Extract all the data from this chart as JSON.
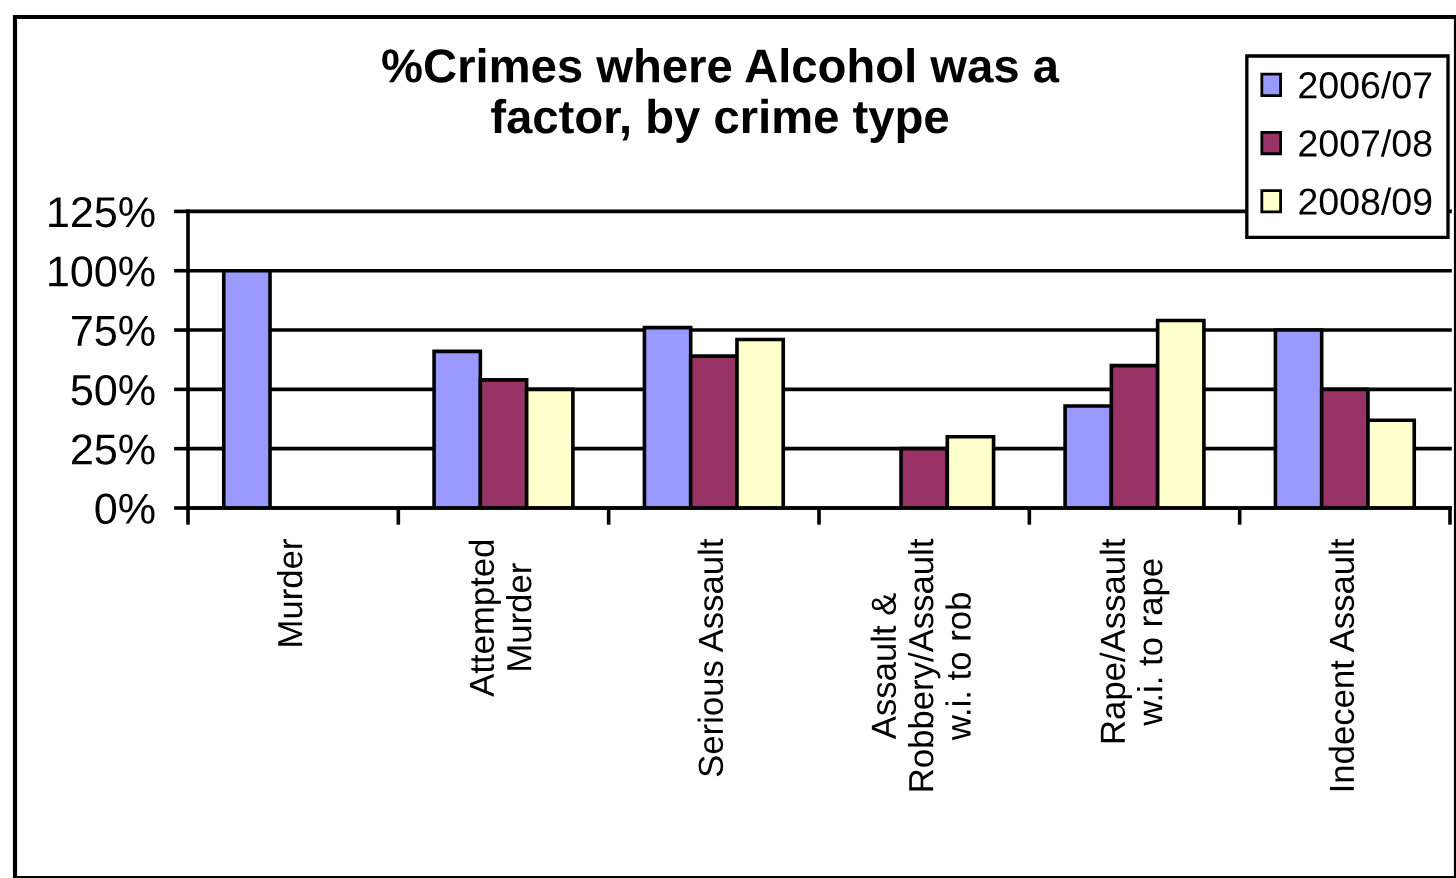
{
  "chart_data": {
    "type": "bar",
    "title": "%Crimes where Alcohol was a\nfactor, by crime type",
    "categories": [
      "Murder",
      "Attempted\nMurder",
      "Serious Assault",
      "Assault &\nRobbery/Assault\nw.i. to rob",
      "Rape/Assault\nw.i. to rape",
      "Indecent Assault"
    ],
    "series": [
      {
        "name": "2006/07",
        "color": "#9999ff",
        "values": [
          100,
          66,
          76,
          null,
          43,
          75
        ]
      },
      {
        "name": "2007/08",
        "color": "#993366",
        "values": [
          null,
          54,
          64,
          25,
          60,
          50
        ]
      },
      {
        "name": "2008/09",
        "color": "#ffffcc",
        "values": [
          null,
          50,
          71,
          30,
          79,
          37
        ]
      }
    ],
    "ylim": [
      0,
      125
    ],
    "yticks": [
      {
        "value": 0,
        "label": "0%"
      },
      {
        "value": 25,
        "label": "25%"
      },
      {
        "value": 50,
        "label": "50%"
      },
      {
        "value": 75,
        "label": "75%"
      },
      {
        "value": 100,
        "label": "100%"
      },
      {
        "value": 125,
        "label": "125%"
      }
    ],
    "grid": "y",
    "legend": "top right"
  }
}
